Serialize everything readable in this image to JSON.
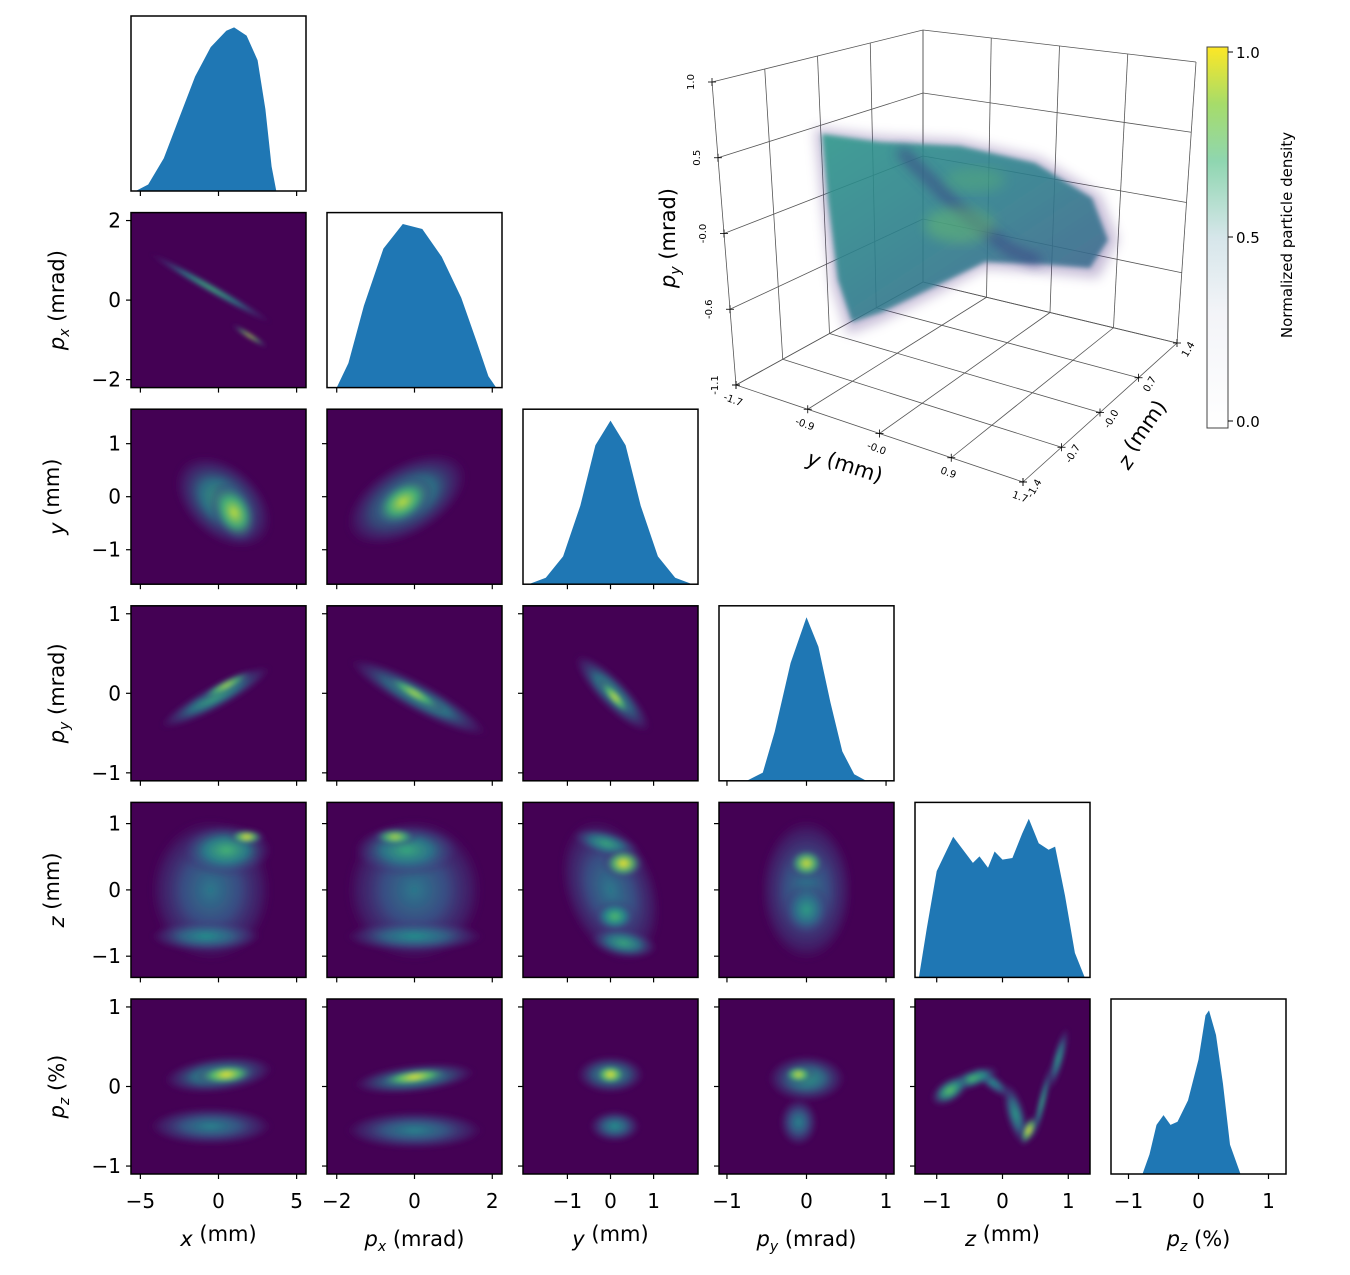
{
  "chart_data": {
    "type": "corner-plot",
    "colors": {
      "histogram": "#1f77b4",
      "density_background": "#440154",
      "colormap": "viridis"
    },
    "variables": [
      {
        "key": "x",
        "symbol": "x",
        "sub": "",
        "unit": " (mm)",
        "ticks": [
          -5,
          0,
          5
        ],
        "tick_labels": [
          "−5",
          "0",
          "5"
        ],
        "col_range": [
          -5.6,
          5.6
        ],
        "row_range": [
          -5.6,
          5.6
        ]
      },
      {
        "key": "px",
        "symbol": "p",
        "sub": "x",
        "unit": " (mrad)",
        "ticks": [
          -2,
          0,
          2
        ],
        "tick_labels": [
          "−2",
          "0",
          "2"
        ],
        "col_range": [
          -2.25,
          2.25
        ],
        "row_range": [
          -2.2,
          2.2
        ]
      },
      {
        "key": "y",
        "symbol": "y",
        "sub": "",
        "unit": " (mm)",
        "ticks": [
          -1,
          0,
          1
        ],
        "tick_labels": [
          "−1",
          "0",
          "1"
        ],
        "col_range": [
          -2.03,
          2.03
        ],
        "row_range": [
          -1.65,
          1.65
        ]
      },
      {
        "key": "py",
        "symbol": "p",
        "sub": "y",
        "unit": " (mrad)",
        "ticks": [
          -1,
          0,
          1
        ],
        "tick_labels": [
          "−1",
          "0",
          "1"
        ],
        "col_range": [
          -1.1,
          1.1
        ],
        "row_range": [
          -1.1,
          1.1
        ]
      },
      {
        "key": "z",
        "symbol": "z",
        "sub": "",
        "unit": " (mm)",
        "ticks": [
          -1,
          0,
          1
        ],
        "tick_labels": [
          "−1",
          "0",
          "1"
        ],
        "col_range": [
          -1.33,
          1.33
        ],
        "row_range": [
          -1.32,
          1.32
        ]
      },
      {
        "key": "pz",
        "symbol": "p",
        "sub": "z",
        "unit": " (%)",
        "ticks": [
          -1,
          0,
          1
        ],
        "tick_labels": [
          "−1",
          "0",
          "1"
        ],
        "col_range": [
          -1.25,
          1.25
        ],
        "row_range": [
          -1.1,
          1.1
        ]
      }
    ],
    "histograms": {
      "x": [
        [
          -5.3,
          0
        ],
        [
          -4.5,
          0.04
        ],
        [
          -3.5,
          0.2
        ],
        [
          -2.5,
          0.45
        ],
        [
          -1.5,
          0.7
        ],
        [
          -0.5,
          0.88
        ],
        [
          0.5,
          0.98
        ],
        [
          1,
          1
        ],
        [
          1.8,
          0.95
        ],
        [
          2.5,
          0.8
        ],
        [
          3,
          0.5
        ],
        [
          3.4,
          0.15
        ],
        [
          3.7,
          0
        ]
      ],
      "px": [
        [
          -2.0,
          0
        ],
        [
          -1.7,
          0.15
        ],
        [
          -1.3,
          0.5
        ],
        [
          -0.8,
          0.85
        ],
        [
          -0.3,
          1.0
        ],
        [
          0.2,
          0.97
        ],
        [
          0.7,
          0.8
        ],
        [
          1.2,
          0.55
        ],
        [
          1.6,
          0.28
        ],
        [
          1.9,
          0.07
        ],
        [
          2.1,
          0
        ]
      ],
      "y": [
        [
          -1.9,
          0
        ],
        [
          -1.5,
          0.04
        ],
        [
          -1.1,
          0.17
        ],
        [
          -0.7,
          0.48
        ],
        [
          -0.35,
          0.85
        ],
        [
          0,
          1
        ],
        [
          0.35,
          0.85
        ],
        [
          0.7,
          0.48
        ],
        [
          1.1,
          0.17
        ],
        [
          1.5,
          0.04
        ],
        [
          1.9,
          0
        ]
      ],
      "py": [
        [
          -0.75,
          0
        ],
        [
          -0.55,
          0.05
        ],
        [
          -0.4,
          0.3
        ],
        [
          -0.2,
          0.72
        ],
        [
          0,
          1
        ],
        [
          0.15,
          0.82
        ],
        [
          0.3,
          0.48
        ],
        [
          0.45,
          0.18
        ],
        [
          0.6,
          0.04
        ],
        [
          0.75,
          0
        ]
      ],
      "z": [
        [
          -1.27,
          0
        ],
        [
          -1.15,
          0.3
        ],
        [
          -1.0,
          0.65
        ],
        [
          -0.75,
          0.86
        ],
        [
          -0.6,
          0.78
        ],
        [
          -0.45,
          0.7
        ],
        [
          -0.35,
          0.74
        ],
        [
          -0.22,
          0.67
        ],
        [
          -0.12,
          0.77
        ],
        [
          0,
          0.72
        ],
        [
          0.15,
          0.73
        ],
        [
          0.3,
          0.88
        ],
        [
          0.4,
          0.97
        ],
        [
          0.55,
          0.82
        ],
        [
          0.7,
          0.78
        ],
        [
          0.8,
          0.8
        ],
        [
          0.95,
          0.5
        ],
        [
          1.1,
          0.15
        ],
        [
          1.25,
          0
        ]
      ],
      "pz": [
        [
          -0.8,
          0
        ],
        [
          -0.7,
          0.12
        ],
        [
          -0.6,
          0.3
        ],
        [
          -0.5,
          0.36
        ],
        [
          -0.4,
          0.3
        ],
        [
          -0.3,
          0.32
        ],
        [
          -0.15,
          0.45
        ],
        [
          0,
          0.7
        ],
        [
          0.1,
          0.97
        ],
        [
          0.15,
          1.0
        ],
        [
          0.25,
          0.85
        ],
        [
          0.35,
          0.55
        ],
        [
          0.45,
          0.18
        ],
        [
          0.6,
          0
        ]
      ]
    },
    "density_2d_components_format": [
      "center_x",
      "center_y",
      "sigma_x",
      "sigma_y",
      "correlation",
      "peak_density"
    ],
    "density_2d": [
      {
        "x": "x",
        "y": "px",
        "components": [
          [
            -0.5,
            0.3,
            2.0,
            0.45,
            -0.99,
            0.7
          ],
          [
            2.0,
            -0.9,
            0.6,
            0.15,
            -0.99,
            1.0
          ]
        ]
      },
      {
        "x": "x",
        "y": "y",
        "components": [
          [
            0.3,
            -0.1,
            1.6,
            0.45,
            -0.4,
            0.6
          ],
          [
            1.0,
            -0.3,
            0.8,
            0.3,
            -0.3,
            0.9
          ]
        ]
      },
      {
        "x": "px",
        "y": "y",
        "components": [
          [
            -0.2,
            -0.05,
            0.8,
            0.45,
            0.5,
            0.6
          ],
          [
            -0.3,
            -0.1,
            0.4,
            0.25,
            0.4,
            0.9
          ]
        ]
      },
      {
        "x": "x",
        "y": "py",
        "components": [
          [
            -0.2,
            -0.05,
            1.8,
            0.2,
            0.9,
            0.6
          ],
          [
            0.5,
            0.1,
            0.9,
            0.1,
            0.9,
            0.9
          ]
        ]
      },
      {
        "x": "px",
        "y": "py",
        "components": [
          [
            0.1,
            -0.05,
            0.9,
            0.25,
            -0.9,
            0.6
          ],
          [
            0,
            0,
            0.4,
            0.12,
            -0.9,
            0.9
          ]
        ]
      },
      {
        "x": "y",
        "y": "py",
        "components": [
          [
            0.05,
            0,
            0.45,
            0.25,
            -0.85,
            0.6
          ],
          [
            0.1,
            -0.05,
            0.2,
            0.12,
            -0.85,
            0.95
          ]
        ]
      },
      {
        "x": "x",
        "y": "z",
        "components": [
          [
            -0.5,
            0.0,
            2.0,
            0.55,
            0,
            0.4
          ],
          [
            0.5,
            0.6,
            1.5,
            0.2,
            0,
            0.65
          ],
          [
            1.8,
            0.8,
            0.6,
            0.06,
            0,
            1.0
          ],
          [
            -0.8,
            -0.7,
            1.8,
            0.12,
            0,
            0.5
          ]
        ]
      },
      {
        "x": "px",
        "y": "z",
        "components": [
          [
            0,
            0,
            0.9,
            0.55,
            0,
            0.4
          ],
          [
            -0.2,
            0.6,
            0.7,
            0.2,
            0,
            0.6
          ],
          [
            -0.5,
            0.8,
            0.3,
            0.07,
            0,
            0.9
          ],
          [
            0,
            -0.7,
            0.9,
            0.12,
            0,
            0.5
          ]
        ]
      },
      {
        "x": "y",
        "y": "z",
        "components": [
          [
            0,
            0,
            0.6,
            0.55,
            -0.3,
            0.4
          ],
          [
            0.3,
            0.4,
            0.25,
            0.12,
            0,
            1.0
          ],
          [
            -0.1,
            0.7,
            0.4,
            0.12,
            -0.5,
            0.6
          ],
          [
            0.1,
            -0.4,
            0.25,
            0.12,
            0,
            0.7
          ],
          [
            0.3,
            -0.8,
            0.4,
            0.12,
            -0.3,
            0.6
          ]
        ]
      },
      {
        "x": "py",
        "y": "z",
        "components": [
          [
            0,
            0,
            0.3,
            0.55,
            0,
            0.4
          ],
          [
            0,
            0.4,
            0.12,
            0.12,
            0,
            0.95
          ],
          [
            0,
            -0.3,
            0.15,
            0.2,
            0,
            0.55
          ]
        ]
      },
      {
        "x": "x",
        "y": "pz",
        "components": [
          [
            0,
            0.15,
            1.8,
            0.12,
            0.3,
            0.6
          ],
          [
            0.5,
            0.15,
            1.0,
            0.07,
            0.2,
            1.0
          ],
          [
            -0.5,
            -0.5,
            2.0,
            0.12,
            0,
            0.45
          ]
        ]
      },
      {
        "x": "px",
        "y": "pz",
        "components": [
          [
            0,
            0.1,
            0.8,
            0.1,
            0.4,
            0.65
          ],
          [
            0,
            0.12,
            0.5,
            0.06,
            0.5,
            1.0
          ],
          [
            0,
            -0.55,
            0.9,
            0.12,
            0,
            0.45
          ]
        ]
      },
      {
        "x": "y",
        "y": "pz",
        "components": [
          [
            0,
            0.15,
            0.4,
            0.12,
            0,
            0.6
          ],
          [
            0,
            0.15,
            0.2,
            0.07,
            0,
            1.0
          ],
          [
            0.1,
            -0.5,
            0.3,
            0.1,
            0,
            0.5
          ]
        ]
      },
      {
        "x": "py",
        "y": "pz",
        "components": [
          [
            0,
            0.1,
            0.25,
            0.15,
            0,
            0.55
          ],
          [
            -0.1,
            0.15,
            0.1,
            0.06,
            0,
            0.95
          ],
          [
            -0.1,
            -0.45,
            0.12,
            0.15,
            0,
            0.45
          ]
        ]
      },
      {
        "x": "z",
        "y": "pz",
        "components": [
          [
            -0.8,
            -0.05,
            0.15,
            0.1,
            0.5,
            0.75
          ],
          [
            -0.45,
            0.1,
            0.2,
            0.08,
            0.6,
            0.7
          ],
          [
            -0.15,
            0.05,
            0.15,
            0.1,
            -0.8,
            0.5
          ],
          [
            0.2,
            -0.35,
            0.1,
            0.2,
            -0.6,
            0.55
          ],
          [
            0.4,
            -0.55,
            0.07,
            0.1,
            0.6,
            1.0
          ],
          [
            0.6,
            -0.2,
            0.08,
            0.25,
            0.9,
            0.6
          ],
          [
            0.85,
            0.35,
            0.08,
            0.2,
            0.8,
            0.55
          ]
        ]
      }
    ],
    "plot3d": {
      "axes": {
        "py": {
          "symbol": "p",
          "sub": "y",
          "unit": " (mrad)",
          "tick_labels": [
            "1.0",
            "0.5",
            "-0.0",
            "-0.6",
            "-1.1"
          ]
        },
        "y": {
          "symbol": "y",
          "sub": "",
          "unit": " (mm)",
          "tick_labels": [
            "-1.7",
            "-0.9",
            "-0.0",
            "0.9",
            "1.7"
          ]
        },
        "z": {
          "symbol": "z",
          "sub": "",
          "unit": " (mm)",
          "tick_labels": [
            "-1.4",
            "-0.7",
            "-0.0",
            "0.7",
            "1.4"
          ]
        }
      },
      "colorbar": {
        "label": "Normalized particle density",
        "tick_labels": [
          "1.0",
          "0.5",
          "0.0"
        ],
        "range": [
          0,
          1
        ]
      }
    }
  }
}
